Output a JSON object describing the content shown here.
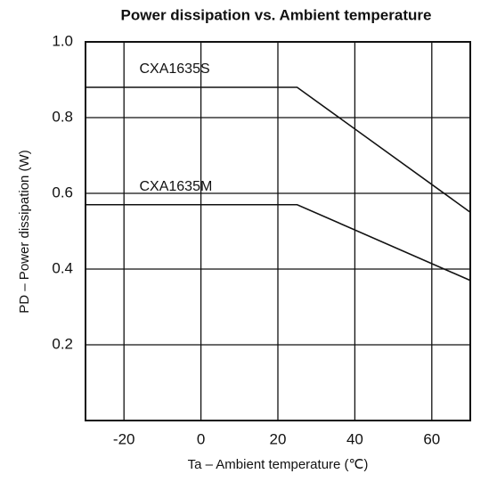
{
  "chart_data": {
    "type": "line",
    "title": "Power dissipation vs. Ambient temperature",
    "xlabel": "Ta – Ambient temperature (℃)",
    "ylabel": "PD – Power dissipation (W)",
    "x": [
      -30,
      25,
      70
    ],
    "series": [
      {
        "name": "CXA1635S",
        "color": "#111111",
        "values": [
          0.88,
          0.88,
          0.55
        ]
      },
      {
        "name": "CXA1635M",
        "color": "#111111",
        "values": [
          0.57,
          0.57,
          0.37
        ]
      }
    ],
    "xlim": [
      -30,
      70
    ],
    "xticks": [
      -20,
      0,
      20,
      40,
      60
    ],
    "ylim": [
      0,
      1
    ],
    "yticks": [
      0.2,
      0.4,
      0.6,
      0.8,
      {
        "value": 1,
        "label": "1.0"
      }
    ],
    "grid": true
  }
}
